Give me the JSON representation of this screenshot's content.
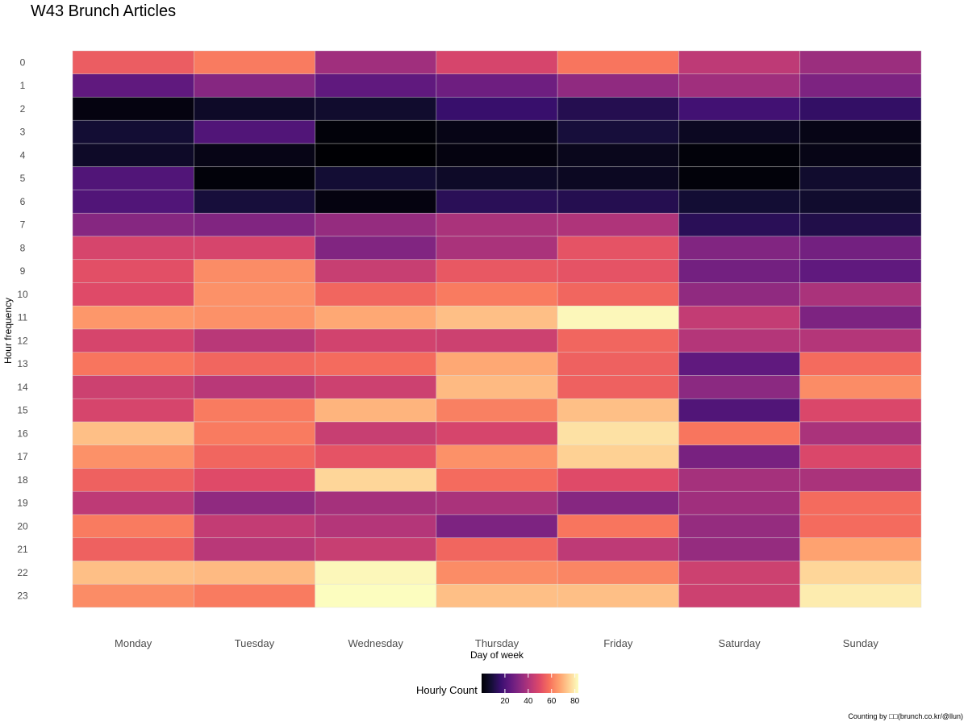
{
  "title": "W43 Brunch Articles",
  "chart_data": {
    "type": "heatmap",
    "title": "W43 Brunch Articles",
    "xlabel": "Day of week",
    "ylabel": "Hour frequency",
    "x_categories": [
      "Monday",
      "Tuesday",
      "Wednesday",
      "Thursday",
      "Friday",
      "Saturday",
      "Sunday"
    ],
    "y_categories": [
      "0",
      "1",
      "2",
      "3",
      "4",
      "5",
      "6",
      "7",
      "8",
      "9",
      "10",
      "11",
      "12",
      "13",
      "14",
      "15",
      "16",
      "17",
      "18",
      "19",
      "20",
      "21",
      "22",
      "23"
    ],
    "values": [
      [
        54,
        60,
        37,
        48,
        59,
        43,
        36
      ],
      [
        24,
        32,
        24,
        27,
        34,
        37,
        30
      ],
      [
        2,
        6,
        7,
        16,
        12,
        18,
        15
      ],
      [
        8,
        21,
        1,
        3,
        9,
        5,
        3
      ],
      [
        6,
        3,
        0,
        2,
        4,
        1,
        3
      ],
      [
        21,
        1,
        8,
        6,
        5,
        1,
        7
      ],
      [
        21,
        9,
        2,
        13,
        12,
        8,
        7
      ],
      [
        32,
        31,
        35,
        39,
        40,
        13,
        11
      ],
      [
        48,
        48,
        31,
        39,
        52,
        31,
        28
      ],
      [
        51,
        63,
        45,
        53,
        52,
        28,
        24
      ],
      [
        50,
        64,
        56,
        60,
        56,
        34,
        39
      ],
      [
        65,
        64,
        68,
        72,
        82,
        44,
        30
      ],
      [
        48,
        42,
        47,
        46,
        56,
        41,
        41
      ],
      [
        59,
        56,
        57,
        68,
        55,
        24,
        57
      ],
      [
        46,
        42,
        46,
        71,
        55,
        33,
        63
      ],
      [
        48,
        60,
        70,
        61,
        72,
        21,
        49
      ],
      [
        72,
        60,
        45,
        48,
        78,
        59,
        39
      ],
      [
        64,
        56,
        52,
        64,
        75,
        29,
        49
      ],
      [
        55,
        50,
        76,
        57,
        50,
        38,
        39
      ],
      [
        43,
        34,
        38,
        39,
        32,
        37,
        57
      ],
      [
        60,
        44,
        41,
        30,
        59,
        35,
        57
      ],
      [
        55,
        42,
        45,
        56,
        43,
        35,
        67
      ],
      [
        72,
        71,
        82,
        63,
        62,
        46,
        76
      ],
      [
        63,
        60,
        83,
        72,
        72,
        46,
        80
      ]
    ],
    "colorscale": "magma",
    "color_range": [
      0,
      83
    ],
    "legend": {
      "title": "Hourly Count",
      "ticks": [
        "20",
        "40",
        "60",
        "80"
      ],
      "placement": "bottom"
    },
    "grid": false
  },
  "caption": "Counting by □□(brunch.co.kr/@llun)"
}
